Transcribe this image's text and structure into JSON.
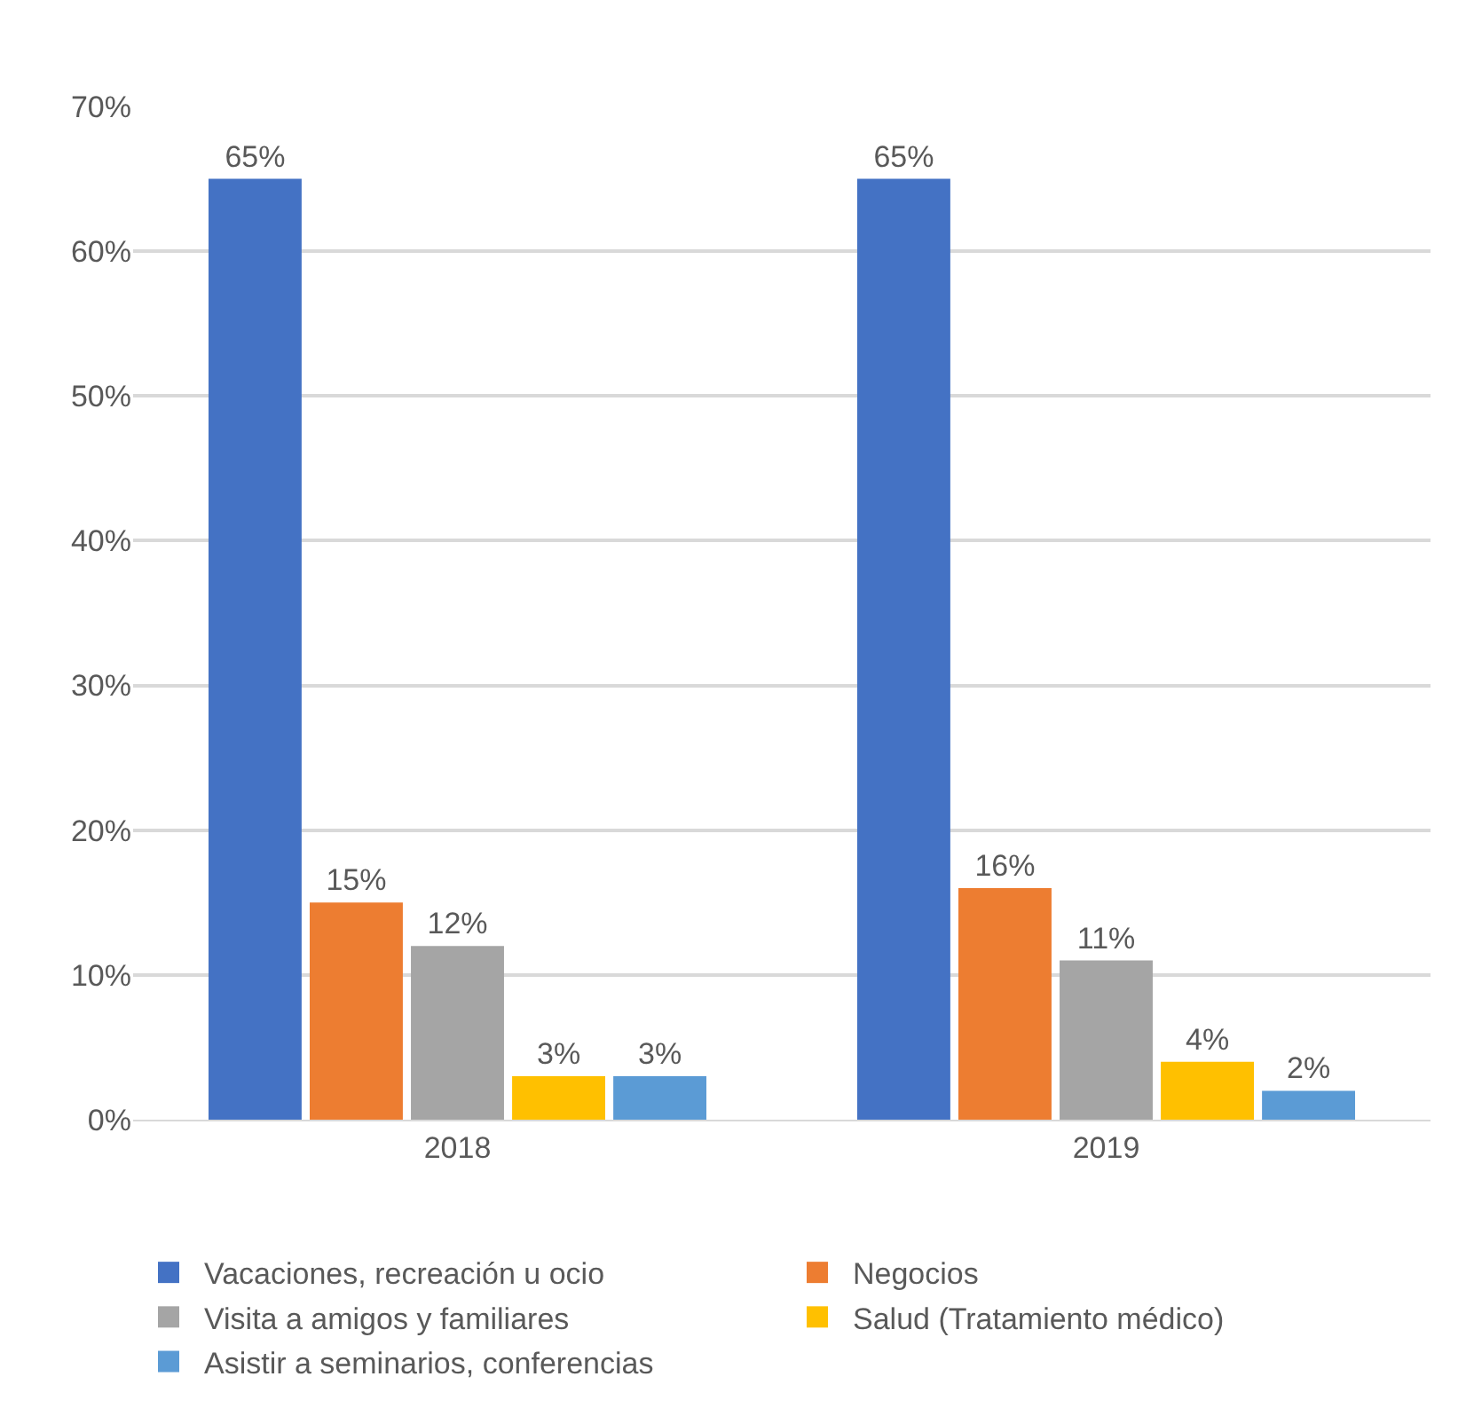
{
  "chart_data": {
    "type": "bar",
    "categories": [
      "2018",
      "2019"
    ],
    "series": [
      {
        "name": "Vacaciones, recreación u ocio",
        "color": "#4472c4",
        "values": [
          65,
          65
        ],
        "value_labels": [
          "65%",
          "65%"
        ]
      },
      {
        "name": "Negocios",
        "color": "#ed7d31",
        "values": [
          15,
          16
        ],
        "value_labels": [
          "15%",
          "16%"
        ]
      },
      {
        "name": "Visita a amigos y familiares",
        "color": "#a5a5a5",
        "values": [
          12,
          11
        ],
        "value_labels": [
          "12%",
          "11%"
        ]
      },
      {
        "name": "Salud (Tratamiento médico)",
        "color": "#ffc000",
        "values": [
          3,
          4
        ],
        "value_labels": [
          "3%",
          "4%"
        ]
      },
      {
        "name": "Asistir a seminarios, conferencias",
        "color": "#5b9bd5",
        "values": [
          3,
          2
        ],
        "value_labels": [
          "3%",
          "2%"
        ]
      }
    ],
    "ylim": [
      0,
      70
    ],
    "yticks": [
      {
        "value": 0,
        "label": "0%"
      },
      {
        "value": 10,
        "label": "10%"
      },
      {
        "value": 20,
        "label": "20%"
      },
      {
        "value": 30,
        "label": "30%"
      },
      {
        "value": 40,
        "label": "40%"
      },
      {
        "value": 50,
        "label": "50%"
      },
      {
        "value": 60,
        "label": "60%"
      },
      {
        "value": 70,
        "label": "70%"
      }
    ],
    "grid": "y",
    "legend": "bottom"
  }
}
